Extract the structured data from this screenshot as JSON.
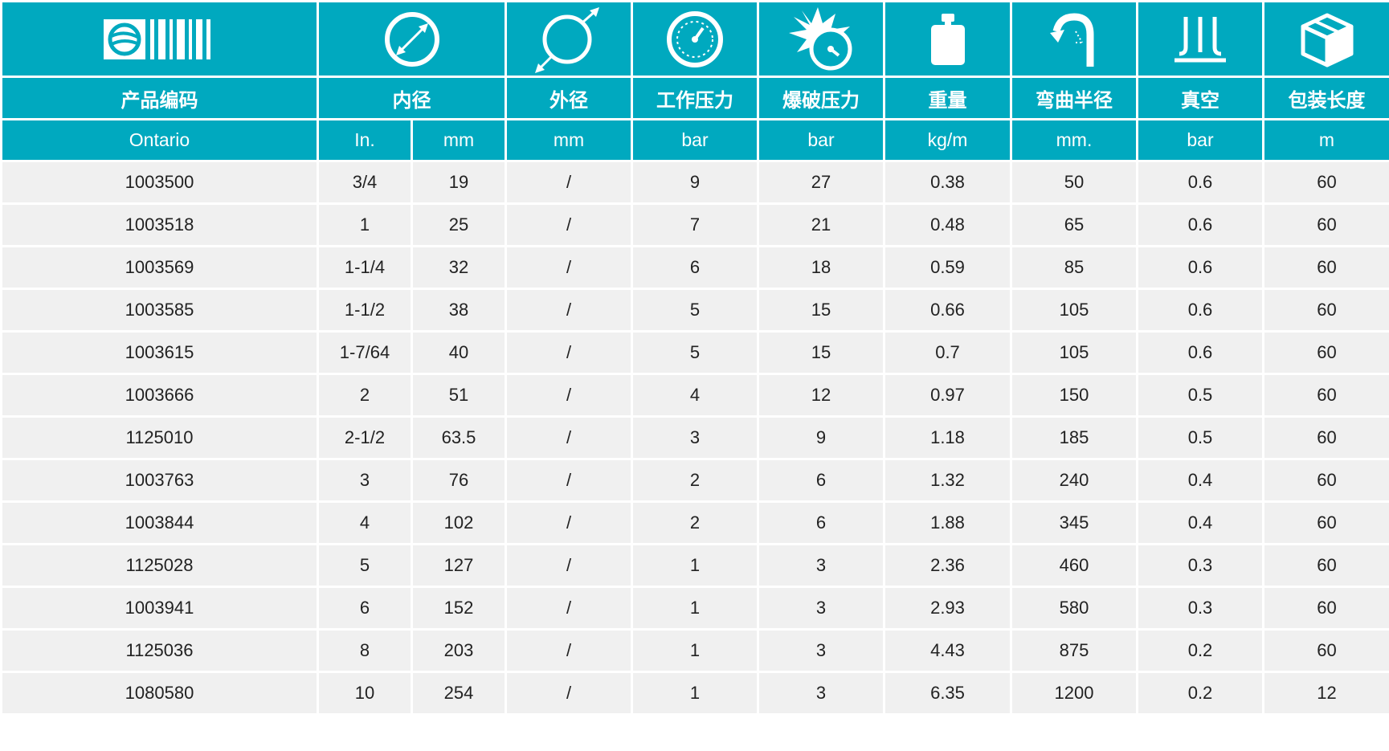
{
  "icons": {
    "code": "brand-logo-icon",
    "inner_diameter": "inner-diameter-icon",
    "outer_diameter": "outer-diameter-icon",
    "working_pressure": "pressure-gauge-icon",
    "burst_pressure": "burst-gauge-icon",
    "weight": "weight-icon",
    "bend_radius": "bend-radius-icon",
    "vacuum": "vacuum-icon",
    "package_length": "package-box-icon"
  },
  "headers": {
    "code": "产品编码",
    "inner_diameter": "内径",
    "outer_diameter": "外径",
    "working_pressure": "工作压力",
    "burst_pressure": "爆破压力",
    "weight": "重量",
    "bend_radius": "弯曲半径",
    "vacuum": "真空",
    "package_length": "包装长度"
  },
  "units": {
    "code": "Ontario",
    "inner_in": "In.",
    "inner_mm": "mm",
    "outer_mm": "mm",
    "working_pressure": "bar",
    "burst_pressure": "bar",
    "weight": "kg/m",
    "bend_radius": "mm.",
    "vacuum": "bar",
    "package_length": "m"
  },
  "rows": [
    [
      "1003500",
      "3/4",
      "19",
      "/",
      "9",
      "27",
      "0.38",
      "50",
      "0.6",
      "60"
    ],
    [
      "1003518",
      "1",
      "25",
      "/",
      "7",
      "21",
      "0.48",
      "65",
      "0.6",
      "60"
    ],
    [
      "1003569",
      "1-1/4",
      "32",
      "/",
      "6",
      "18",
      "0.59",
      "85",
      "0.6",
      "60"
    ],
    [
      "1003585",
      "1-1/2",
      "38",
      "/",
      "5",
      "15",
      "0.66",
      "105",
      "0.6",
      "60"
    ],
    [
      "1003615",
      "1-7/64",
      "40",
      "/",
      "5",
      "15",
      "0.7",
      "105",
      "0.6",
      "60"
    ],
    [
      "1003666",
      "2",
      "51",
      "/",
      "4",
      "12",
      "0.97",
      "150",
      "0.5",
      "60"
    ],
    [
      "1125010",
      "2-1/2",
      "63.5",
      "/",
      "3",
      "9",
      "1.18",
      "185",
      "0.5",
      "60"
    ],
    [
      "1003763",
      "3",
      "76",
      "/",
      "2",
      "6",
      "1.32",
      "240",
      "0.4",
      "60"
    ],
    [
      "1003844",
      "4",
      "102",
      "/",
      "2",
      "6",
      "1.88",
      "345",
      "0.4",
      "60"
    ],
    [
      "1125028",
      "5",
      "127",
      "/",
      "1",
      "3",
      "2.36",
      "460",
      "0.3",
      "60"
    ],
    [
      "1003941",
      "6",
      "152",
      "/",
      "1",
      "3",
      "2.93",
      "580",
      "0.3",
      "60"
    ],
    [
      "1125036",
      "8",
      "203",
      "/",
      "1",
      "3",
      "4.43",
      "875",
      "0.2",
      "60"
    ],
    [
      "1080580",
      "10",
      "254",
      "/",
      "1",
      "3",
      "6.35",
      "1200",
      "0.2",
      "12"
    ]
  ],
  "colors": {
    "header_bg": "#00a9bf",
    "row_bg": "#f0f0f0",
    "header_text": "#ffffff",
    "body_text": "#222222"
  }
}
